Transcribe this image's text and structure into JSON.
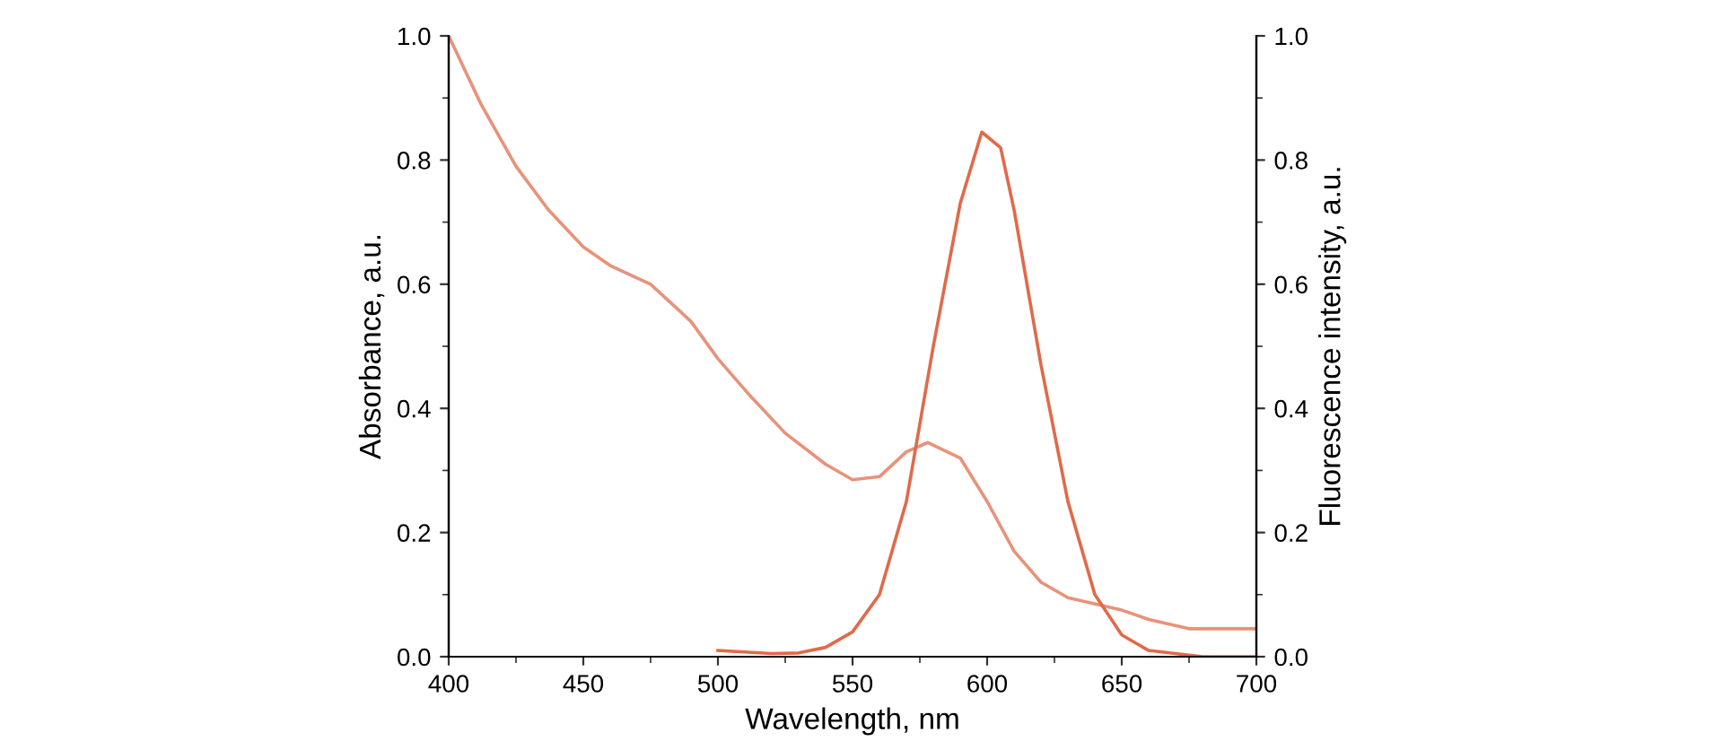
{
  "chart_data": {
    "type": "line",
    "xlabel": "Wavelength, nm",
    "ylabel": "Absorbance, a.u.",
    "y2label": "Fluorescence intensity, a.u.",
    "xlim": [
      400,
      700
    ],
    "xticks": [
      400,
      450,
      500,
      550,
      600,
      650,
      700
    ],
    "ylim": [
      0.0,
      1.0
    ],
    "yticks": [
      {
        "value": 0,
        "label": "0.0"
      },
      0.2,
      0.4,
      0.6,
      0.8,
      {
        "value": 1,
        "label": "1.0"
      }
    ],
    "y2lim": [
      0.0,
      1.0
    ],
    "y2ticks": [
      {
        "value": 0,
        "label": "0.0"
      },
      0.2,
      0.4,
      0.6,
      0.8,
      {
        "value": 1,
        "label": "1.0"
      }
    ],
    "grid": false,
    "marker": "none",
    "line_style": "solid",
    "series": [
      {
        "color": "#e8927a",
        "axis": "y",
        "x": [
          400,
          412,
          425,
          437,
          450,
          460,
          475,
          490,
          500,
          512,
          525,
          540,
          550,
          560,
          570,
          578,
          590,
          600,
          610,
          620,
          630,
          650,
          660,
          675,
          700
        ],
        "values": [
          1.0,
          0.89,
          0.79,
          0.72,
          0.66,
          0.63,
          0.6,
          0.54,
          0.48,
          0.42,
          0.36,
          0.31,
          0.285,
          0.29,
          0.33,
          0.345,
          0.32,
          0.25,
          0.17,
          0.12,
          0.095,
          0.075,
          0.06,
          0.045,
          0.045
        ]
      },
      {
        "color": "#e06a4a",
        "axis": "y2",
        "x": [
          500,
          520,
          530,
          540,
          550,
          560,
          570,
          580,
          590,
          598,
          605,
          610,
          620,
          630,
          640,
          650,
          660,
          680,
          700
        ],
        "values": [
          0.01,
          0.005,
          0.006,
          0.015,
          0.04,
          0.1,
          0.25,
          0.5,
          0.73,
          0.845,
          0.82,
          0.72,
          0.47,
          0.25,
          0.1,
          0.035,
          0.01,
          0.0,
          0.0
        ]
      }
    ]
  }
}
